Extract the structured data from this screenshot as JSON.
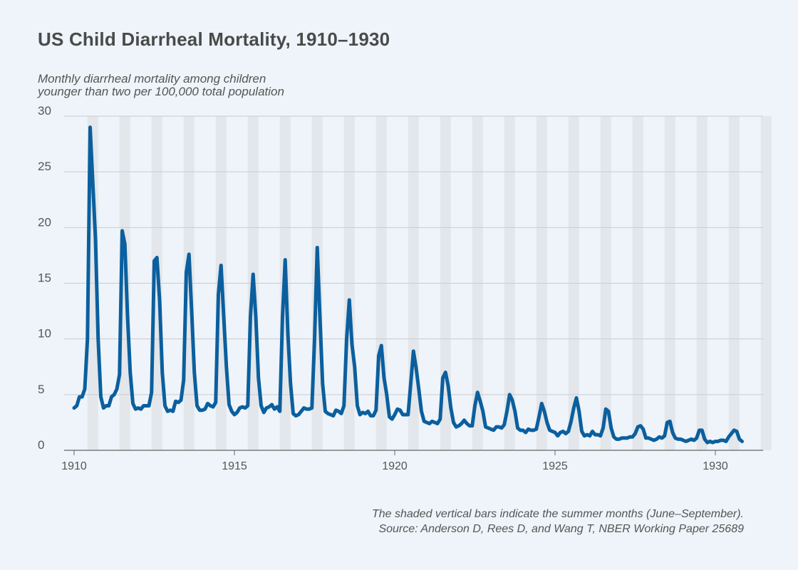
{
  "title": "US Child Diarrheal Mortality, 1910–1930",
  "subtitle_lines": [
    "Monthly diarrheal mortality among children",
    "younger than two per 100,000 total population"
  ],
  "note": "The shaded vertical bars indicate the summer months (June–September).",
  "source": "Source: Anderson D, Rees D, and Wang T, NBER Working Paper 25689",
  "colors": {
    "line": "#0b5f9e",
    "summer_shade": "#e3e6ea",
    "grid": "#c9ccd0",
    "axis": "#666666",
    "text": "#555555"
  },
  "chart_data": {
    "type": "line",
    "title": "US Child Diarrheal Mortality, 1910–1930",
    "ylabel": "Monthly diarrheal mortality among children younger than two per 100,000 total population",
    "xlabel": "",
    "xlim": [
      1910,
      1931.3
    ],
    "ylim": [
      0,
      30
    ],
    "xticks": [
      1910,
      1915,
      1920,
      1925,
      1930
    ],
    "xtick_labels": [
      "1910",
      "1915",
      "1920",
      "1925",
      "1930"
    ],
    "yticks": [
      0,
      5,
      10,
      15,
      20,
      25,
      30
    ],
    "ytick_labels": [
      "0",
      "5",
      "10",
      "15",
      "20",
      "25",
      "30"
    ],
    "grid": "horizontal",
    "summer_shading": "June–September of each year",
    "series": [
      {
        "name": "",
        "frequency": "monthly",
        "start": "1910-01",
        "values": [
          3.8,
          4.0,
          4.8,
          4.8,
          5.5,
          10.0,
          29.0,
          24.0,
          19.0,
          10.0,
          4.8,
          3.8,
          4.0,
          4.0,
          4.8,
          5.0,
          5.5,
          6.8,
          19.7,
          18.5,
          12.0,
          7.0,
          4.2,
          3.7,
          3.8,
          3.7,
          4.0,
          4.0,
          4.0,
          5.2,
          17.0,
          17.3,
          13.5,
          7.0,
          4.0,
          3.5,
          3.6,
          3.5,
          4.4,
          4.3,
          4.5,
          6.3,
          16.0,
          17.6,
          12.5,
          7.0,
          4.0,
          3.6,
          3.6,
          3.7,
          4.2,
          4.0,
          3.9,
          4.3,
          14.0,
          16.6,
          12.0,
          7.5,
          4.1,
          3.5,
          3.2,
          3.4,
          3.8,
          3.9,
          3.8,
          4.0,
          12.0,
          15.8,
          12.0,
          6.5,
          4.0,
          3.4,
          3.8,
          3.9,
          4.1,
          3.7,
          3.9,
          3.5,
          12.0,
          17.1,
          10.5,
          6.0,
          3.3,
          3.1,
          3.2,
          3.5,
          3.8,
          3.7,
          3.7,
          3.8,
          10.0,
          18.2,
          12.0,
          6.0,
          3.5,
          3.3,
          3.2,
          3.1,
          3.6,
          3.5,
          3.3,
          4.0,
          10.0,
          13.5,
          9.5,
          7.5,
          4.0,
          3.2,
          3.4,
          3.3,
          3.5,
          3.1,
          3.1,
          3.6,
          8.5,
          9.4,
          6.5,
          5.0,
          3.0,
          2.8,
          3.2,
          3.7,
          3.6,
          3.2,
          3.2,
          3.2,
          6.0,
          8.9,
          7.4,
          5.5,
          3.5,
          2.6,
          2.5,
          2.4,
          2.6,
          2.5,
          2.4,
          2.8,
          6.5,
          7.0,
          5.8,
          3.8,
          2.5,
          2.1,
          2.2,
          2.4,
          2.7,
          2.4,
          2.2,
          2.2,
          4.0,
          5.2,
          4.4,
          3.5,
          2.1,
          2.0,
          1.9,
          1.8,
          2.1,
          2.1,
          2.0,
          2.3,
          3.5,
          5.0,
          4.5,
          3.5,
          2.0,
          1.8,
          1.8,
          1.6,
          1.9,
          1.8,
          1.8,
          1.9,
          3.0,
          4.2,
          3.5,
          2.5,
          1.8,
          1.7,
          1.6,
          1.3,
          1.6,
          1.7,
          1.5,
          1.7,
          2.6,
          3.8,
          4.7,
          3.5,
          1.7,
          1.3,
          1.4,
          1.3,
          1.7,
          1.4,
          1.4,
          1.3,
          2.0,
          3.7,
          3.5,
          2.0,
          1.2,
          1.0,
          1.0,
          1.1,
          1.1,
          1.1,
          1.2,
          1.2,
          1.5,
          2.1,
          2.2,
          1.9,
          1.1,
          1.1,
          1.0,
          0.9,
          1.0,
          1.2,
          1.1,
          1.3,
          2.5,
          2.6,
          1.6,
          1.1,
          1.0,
          1.0,
          0.9,
          0.8,
          0.9,
          1.0,
          0.9,
          1.1,
          1.8,
          1.8,
          1.0,
          0.7,
          0.8,
          0.7,
          0.8,
          0.8,
          0.9,
          0.9,
          0.8,
          1.2,
          1.5,
          1.8,
          1.7,
          1.0,
          0.8
        ]
      }
    ]
  }
}
